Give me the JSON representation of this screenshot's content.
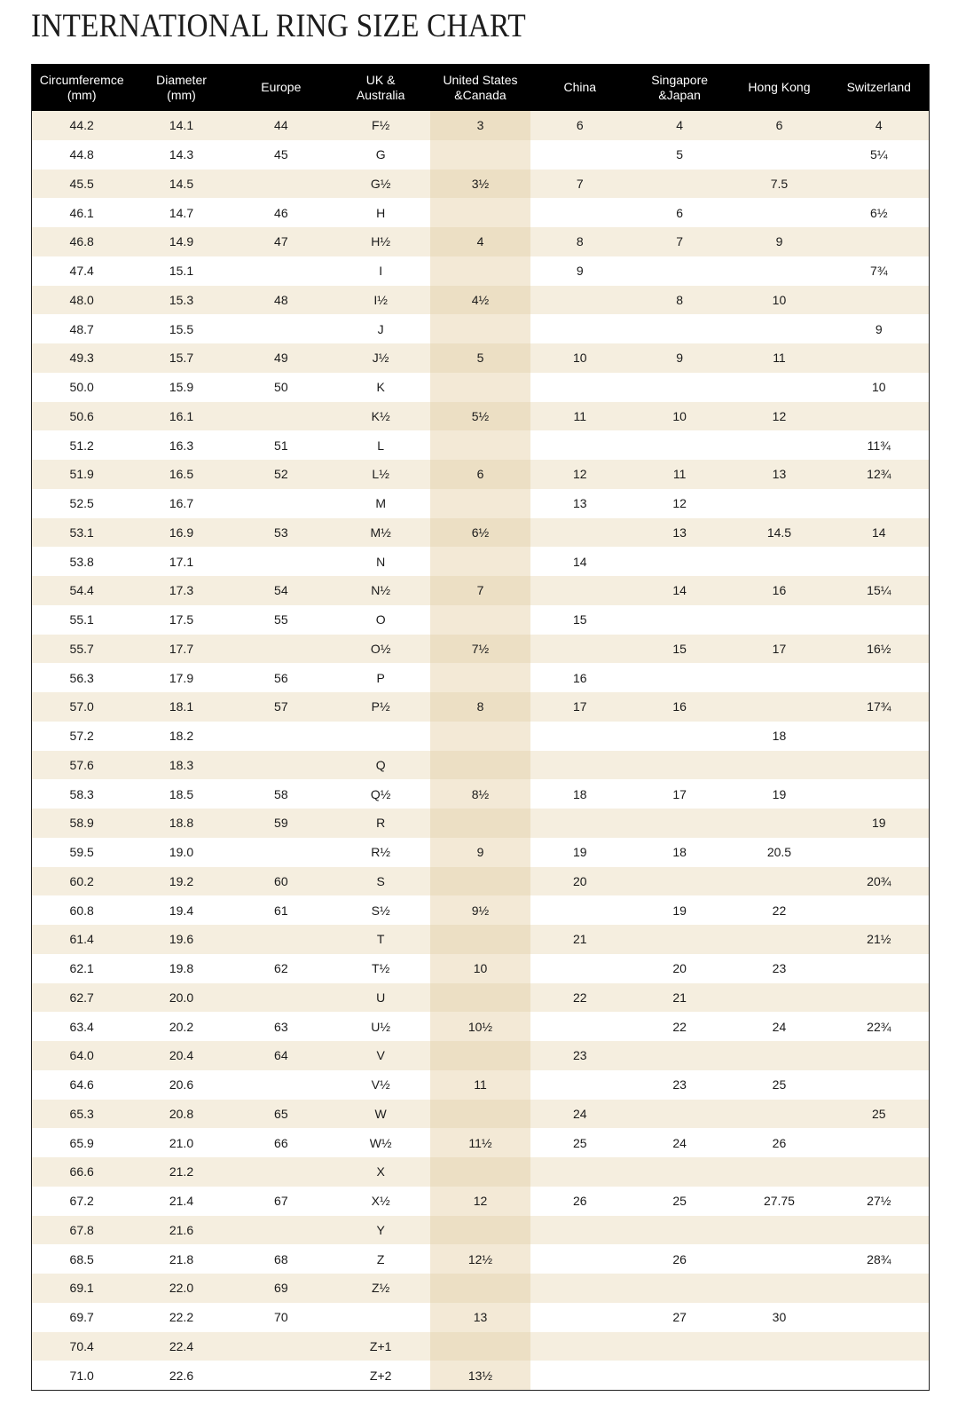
{
  "title": "INTERNATIONAL RING SIZE CHART",
  "colors": {
    "header_bg": "#000000",
    "stripe": "#f5eedf",
    "highlight_column": "#ecdfc4"
  },
  "columns": [
    "Circumferemce\n(mm)",
    "Diameter\n(mm)",
    "Europe",
    "UK &\nAustralia",
    "United States\n&Canada",
    "China",
    "Singapore\n&Japan",
    "Hong Kong",
    "Switzerland"
  ],
  "rows": [
    [
      "44.2",
      "14.1",
      "44",
      "F½",
      "3",
      "6",
      "4",
      "6",
      "4"
    ],
    [
      "44.8",
      "14.3",
      "45",
      "G",
      "",
      "",
      "5",
      "",
      "5¼"
    ],
    [
      "45.5",
      "14.5",
      "",
      "G½",
      "3½",
      "7",
      "",
      "7.5",
      ""
    ],
    [
      "46.1",
      "14.7",
      "46",
      "H",
      "",
      "",
      "6",
      "",
      "6½"
    ],
    [
      "46.8",
      "14.9",
      "47",
      "H½",
      "4",
      "8",
      "7",
      "9",
      ""
    ],
    [
      "47.4",
      "15.1",
      "",
      "I",
      "",
      "9",
      "",
      "",
      "7¾"
    ],
    [
      "48.0",
      "15.3",
      "48",
      "I½",
      "4½",
      "",
      "8",
      "10",
      ""
    ],
    [
      "48.7",
      "15.5",
      "",
      "J",
      "",
      "",
      "",
      "",
      "9"
    ],
    [
      "49.3",
      "15.7",
      "49",
      "J½",
      "5",
      "10",
      "9",
      "11",
      ""
    ],
    [
      "50.0",
      "15.9",
      "50",
      "K",
      "",
      "",
      "",
      "",
      "10"
    ],
    [
      "50.6",
      "16.1",
      "",
      "K½",
      "5½",
      "11",
      "10",
      "12",
      ""
    ],
    [
      "51.2",
      "16.3",
      "51",
      "L",
      "",
      "",
      "",
      "",
      "11¾"
    ],
    [
      "51.9",
      "16.5",
      "52",
      "L½",
      "6",
      "12",
      "11",
      "13",
      "12¾"
    ],
    [
      "52.5",
      "16.7",
      "",
      "M",
      "",
      "13",
      "12",
      "",
      ""
    ],
    [
      "53.1",
      "16.9",
      "53",
      "M½",
      "6½",
      "",
      "13",
      "14.5",
      "14"
    ],
    [
      "53.8",
      "17.1",
      "",
      "N",
      "",
      "14",
      "",
      "",
      ""
    ],
    [
      "54.4",
      "17.3",
      "54",
      "N½",
      "7",
      "",
      "14",
      "16",
      "15¼"
    ],
    [
      "55.1",
      "17.5",
      "55",
      "O",
      "",
      "15",
      "",
      "",
      ""
    ],
    [
      "55.7",
      "17.7",
      "",
      "O½",
      "7½",
      "",
      "15",
      "17",
      "16½"
    ],
    [
      "56.3",
      "17.9",
      "56",
      "P",
      "",
      "16",
      "",
      "",
      ""
    ],
    [
      "57.0",
      "18.1",
      "57",
      "P½",
      "8",
      "17",
      "16",
      "",
      "17¾"
    ],
    [
      "57.2",
      "18.2",
      "",
      "",
      "",
      "",
      "",
      "18",
      ""
    ],
    [
      "57.6",
      "18.3",
      "",
      "Q",
      "",
      "",
      "",
      "",
      ""
    ],
    [
      "58.3",
      "18.5",
      "58",
      "Q½",
      "8½",
      "18",
      "17",
      "19",
      ""
    ],
    [
      "58.9",
      "18.8",
      "59",
      "R",
      "",
      "",
      "",
      "",
      "19"
    ],
    [
      "59.5",
      "19.0",
      "",
      "R½",
      "9",
      "19",
      "18",
      "20.5",
      ""
    ],
    [
      "60.2",
      "19.2",
      "60",
      "S",
      "",
      "20",
      "",
      "",
      "20¾"
    ],
    [
      "60.8",
      "19.4",
      "61",
      "S½",
      "9½",
      "",
      "19",
      "22",
      ""
    ],
    [
      "61.4",
      "19.6",
      "",
      "T",
      "",
      "21",
      "",
      "",
      "21½"
    ],
    [
      "62.1",
      "19.8",
      "62",
      "T½",
      "10",
      "",
      "20",
      "23",
      ""
    ],
    [
      "62.7",
      "20.0",
      "",
      "U",
      "",
      "22",
      "21",
      "",
      ""
    ],
    [
      "63.4",
      "20.2",
      "63",
      "U½",
      "10½",
      "",
      "22",
      "24",
      "22¾"
    ],
    [
      "64.0",
      "20.4",
      "64",
      "V",
      "",
      "23",
      "",
      "",
      ""
    ],
    [
      "64.6",
      "20.6",
      "",
      "V½",
      "11",
      "",
      "23",
      "25",
      ""
    ],
    [
      "65.3",
      "20.8",
      "65",
      "W",
      "",
      "24",
      "",
      "",
      "25"
    ],
    [
      "65.9",
      "21.0",
      "66",
      "W½",
      "11½",
      "25",
      "24",
      "26",
      ""
    ],
    [
      "66.6",
      "21.2",
      "",
      "X",
      "",
      "",
      "",
      "",
      ""
    ],
    [
      "67.2",
      "21.4",
      "67",
      "X½",
      "12",
      "26",
      "25",
      "27.75",
      "27½"
    ],
    [
      "67.8",
      "21.6",
      "",
      "Y",
      "",
      "",
      "",
      "",
      ""
    ],
    [
      "68.5",
      "21.8",
      "68",
      "Z",
      "12½",
      "",
      "26",
      "",
      "28¾"
    ],
    [
      "69.1",
      "22.0",
      "69",
      "Z½",
      "",
      "",
      "",
      "",
      ""
    ],
    [
      "69.7",
      "22.2",
      "70",
      "",
      "13",
      "",
      "27",
      "30",
      ""
    ],
    [
      "70.4",
      "22.4",
      "",
      "Z+1",
      "",
      "",
      "",
      "",
      ""
    ],
    [
      "71.0",
      "22.6",
      "",
      "Z+2",
      "13½",
      "",
      "",
      "",
      ""
    ]
  ]
}
